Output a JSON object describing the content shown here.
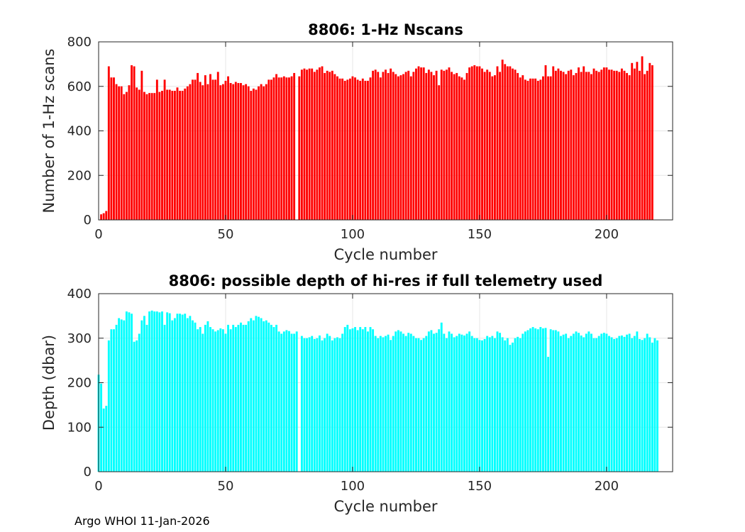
{
  "footer": "Argo WHOI 11-Jan-2026",
  "chart_data": [
    {
      "type": "bar",
      "title": "8806: 1-Hz Nscans",
      "xlabel": "Cycle number",
      "ylabel": "Number of 1-Hz scans",
      "xlim": [
        0,
        226
      ],
      "ylim": [
        0,
        800
      ],
      "xticks": [
        0,
        50,
        100,
        150,
        200
      ],
      "yticks": [
        0,
        200,
        400,
        600,
        800
      ],
      "grid": true,
      "bar_color": "#ff0000",
      "x_start": 1,
      "values": [
        25,
        30,
        40,
        690,
        640,
        640,
        610,
        600,
        600,
        565,
        575,
        605,
        695,
        690,
        595,
        585,
        670,
        575,
        565,
        570,
        570,
        570,
        630,
        575,
        580,
        630,
        585,
        585,
        580,
        580,
        595,
        580,
        580,
        590,
        600,
        610,
        630,
        630,
        660,
        620,
        605,
        650,
        610,
        655,
        630,
        630,
        665,
        605,
        610,
        625,
        645,
        615,
        610,
        620,
        615,
        615,
        605,
        610,
        600,
        580,
        590,
        585,
        600,
        610,
        600,
        610,
        630,
        630,
        640,
        655,
        640,
        640,
        645,
        640,
        640,
        645,
        660,
        0,
        645,
        675,
        680,
        675,
        680,
        680,
        665,
        675,
        685,
        690,
        660,
        670,
        665,
        670,
        655,
        645,
        635,
        635,
        625,
        630,
        635,
        645,
        640,
        630,
        625,
        635,
        625,
        625,
        640,
        670,
        675,
        665,
        640,
        665,
        675,
        660,
        680,
        665,
        655,
        645,
        650,
        655,
        665,
        670,
        645,
        665,
        680,
        690,
        685,
        685,
        660,
        675,
        665,
        650,
        670,
        605,
        675,
        670,
        675,
        685,
        665,
        655,
        660,
        645,
        640,
        630,
        660,
        685,
        690,
        695,
        690,
        690,
        680,
        665,
        675,
        665,
        645,
        650,
        690,
        665,
        720,
        700,
        690,
        690,
        680,
        675,
        660,
        640,
        650,
        630,
        625,
        635,
        635,
        635,
        625,
        630,
        645,
        695,
        645,
        645,
        690,
        670,
        680,
        670,
        665,
        655,
        670,
        675,
        650,
        660,
        685,
        665,
        690,
        665,
        665,
        655,
        680,
        670,
        665,
        675,
        685,
        685,
        675,
        675,
        670,
        670,
        665,
        680,
        670,
        660,
        650,
        705,
        680,
        710,
        670,
        735,
        655,
        670,
        705,
        695
      ]
    },
    {
      "type": "bar",
      "title": "8806: possible depth of hi-res if full telemetry used",
      "xlabel": "Cycle number",
      "ylabel": "Depth (dbar)",
      "xlim": [
        0,
        226
      ],
      "ylim": [
        0,
        400
      ],
      "xticks": [
        0,
        50,
        100,
        150,
        200
      ],
      "yticks": [
        0,
        100,
        200,
        300,
        400
      ],
      "grid": true,
      "bar_color": "#00ffff",
      "x_start": 0,
      "values": [
        218,
        198,
        142,
        148,
        295,
        320,
        320,
        330,
        345,
        342,
        340,
        360,
        358,
        355,
        292,
        295,
        310,
        340,
        350,
        330,
        360,
        362,
        360,
        360,
        358,
        360,
        330,
        358,
        356,
        340,
        345,
        355,
        355,
        353,
        355,
        345,
        350,
        340,
        335,
        320,
        325,
        310,
        330,
        338,
        325,
        320,
        315,
        318,
        322,
        320,
        310,
        330,
        320,
        330,
        325,
        330,
        335,
        330,
        330,
        338,
        345,
        340,
        350,
        348,
        345,
        338,
        340,
        335,
        330,
        325,
        330,
        315,
        310,
        315,
        318,
        316,
        310,
        310,
        315,
        0,
        305,
        300,
        300,
        302,
        305,
        298,
        300,
        306,
        295,
        300,
        310,
        305,
        295,
        300,
        302,
        300,
        310,
        325,
        330,
        320,
        322,
        325,
        318,
        325,
        320,
        325,
        315,
        325,
        320,
        305,
        300,
        305,
        302,
        305,
        308,
        296,
        305,
        315,
        318,
        315,
        310,
        305,
        312,
        310,
        305,
        300,
        300,
        296,
        300,
        305,
        315,
        318,
        310,
        312,
        320,
        335,
        310,
        300,
        315,
        310,
        302,
        305,
        310,
        308,
        306,
        310,
        315,
        305,
        300,
        300,
        296,
        295,
        298,
        305,
        302,
        305,
        300,
        315,
        312,
        302,
        295,
        300,
        285,
        290,
        300,
        303,
        300,
        310,
        315,
        318,
        322,
        325,
        322,
        320,
        325,
        322,
        323,
        258,
        320,
        318,
        318,
        315,
        305,
        308,
        310,
        300,
        305,
        310,
        315,
        312,
        306,
        302,
        310,
        315,
        310,
        300,
        300,
        305,
        310,
        312,
        310,
        305,
        302,
        298,
        300,
        305,
        306,
        303,
        308,
        310,
        300,
        305,
        315,
        298,
        296,
        300,
        310,
        302,
        290,
        300,
        295
      ]
    }
  ]
}
